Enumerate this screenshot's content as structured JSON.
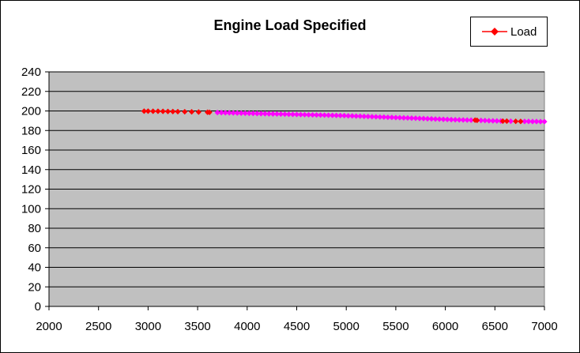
{
  "chart_data": {
    "type": "scatter",
    "title": "Engine Load Specified",
    "xlabel": "",
    "ylabel": "",
    "xlim": [
      2000,
      7000
    ],
    "ylim": [
      0,
      240
    ],
    "x_ticks": [
      "2000",
      "2500",
      "3000",
      "3500",
      "4000",
      "4500",
      "5000",
      "5500",
      "6000",
      "6500",
      "7000"
    ],
    "y_ticks": [
      "0",
      "20",
      "40",
      "60",
      "80",
      "100",
      "120",
      "140",
      "160",
      "180",
      "200",
      "220",
      "240"
    ],
    "grid": "horizontal",
    "plot_background": "#c0c0c0",
    "legend_position": "top-right",
    "series": [
      {
        "name": "Load",
        "color": "#ff0000",
        "marker": "diamond",
        "points": [
          [
            2960,
            199.8
          ],
          [
            3000,
            199.8
          ],
          [
            3050,
            199.7
          ],
          [
            3100,
            199.7
          ],
          [
            3150,
            199.6
          ],
          [
            3200,
            199.5
          ],
          [
            3250,
            199.4
          ],
          [
            3300,
            199.3
          ],
          [
            3370,
            199.2
          ],
          [
            3440,
            199.1
          ],
          [
            3510,
            198.9
          ],
          [
            3600,
            198.7
          ],
          [
            3620,
            198.6
          ],
          [
            6300,
            190.6
          ],
          [
            6320,
            190.4
          ],
          [
            6580,
            189.6
          ],
          [
            6620,
            189.6
          ],
          [
            6710,
            189.4
          ],
          [
            6760,
            189.3
          ]
        ]
      },
      {
        "name": "",
        "color": "#ff00ff",
        "marker": "diamond",
        "points": [
          [
            3700,
            198.4
          ],
          [
            3740,
            198.3
          ],
          [
            3780,
            198.2
          ],
          [
            3820,
            198.1
          ],
          [
            3860,
            198.0
          ],
          [
            3900,
            197.9
          ],
          [
            3940,
            197.8
          ],
          [
            3980,
            197.7
          ],
          [
            4020,
            197.6
          ],
          [
            4060,
            197.5
          ],
          [
            4100,
            197.4
          ],
          [
            4140,
            197.3
          ],
          [
            4180,
            197.2
          ],
          [
            4220,
            197.1
          ],
          [
            4260,
            197.0
          ],
          [
            4300,
            196.9
          ],
          [
            4340,
            196.8
          ],
          [
            4380,
            196.7
          ],
          [
            4420,
            196.6
          ],
          [
            4460,
            196.5
          ],
          [
            4500,
            196.4
          ],
          [
            4540,
            196.3
          ],
          [
            4580,
            196.2
          ],
          [
            4620,
            196.1
          ],
          [
            4660,
            196.0
          ],
          [
            4700,
            195.9
          ],
          [
            4740,
            195.8
          ],
          [
            4780,
            195.7
          ],
          [
            4820,
            195.6
          ],
          [
            4860,
            195.5
          ],
          [
            4900,
            195.4
          ],
          [
            4940,
            195.3
          ],
          [
            4980,
            195.2
          ],
          [
            5020,
            195.0
          ],
          [
            5060,
            194.9
          ],
          [
            5100,
            194.7
          ],
          [
            5140,
            194.6
          ],
          [
            5180,
            194.4
          ],
          [
            5220,
            194.3
          ],
          [
            5260,
            194.1
          ],
          [
            5300,
            194.0
          ],
          [
            5340,
            193.8
          ],
          [
            5380,
            193.7
          ],
          [
            5420,
            193.5
          ],
          [
            5460,
            193.4
          ],
          [
            5500,
            193.2
          ],
          [
            5540,
            193.1
          ],
          [
            5580,
            192.9
          ],
          [
            5620,
            192.8
          ],
          [
            5660,
            192.6
          ],
          [
            5700,
            192.5
          ],
          [
            5740,
            192.3
          ],
          [
            5780,
            192.2
          ],
          [
            5820,
            192.0
          ],
          [
            5860,
            191.9
          ],
          [
            5900,
            191.7
          ],
          [
            5940,
            191.6
          ],
          [
            5980,
            191.4
          ],
          [
            6020,
            191.3
          ],
          [
            6060,
            191.1
          ],
          [
            6100,
            191.0
          ],
          [
            6140,
            190.9
          ],
          [
            6180,
            190.8
          ],
          [
            6220,
            190.7
          ],
          [
            6260,
            190.6
          ],
          [
            6360,
            190.3
          ],
          [
            6400,
            190.2
          ],
          [
            6440,
            190.0
          ],
          [
            6480,
            189.9
          ],
          [
            6520,
            189.8
          ],
          [
            6560,
            189.7
          ],
          [
            6660,
            189.5
          ],
          [
            6800,
            189.3
          ],
          [
            6840,
            189.3
          ],
          [
            6880,
            189.2
          ],
          [
            6920,
            189.2
          ],
          [
            6960,
            189.1
          ],
          [
            7000,
            189.1
          ]
        ]
      }
    ]
  }
}
